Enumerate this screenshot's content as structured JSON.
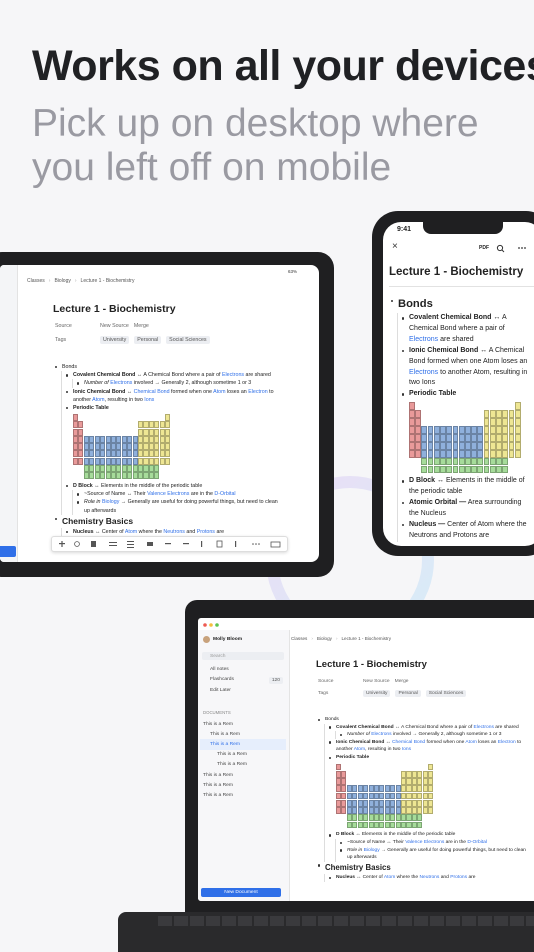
{
  "header": {
    "title": "Works on all your devices",
    "subtitle": "Pick up on desktop where you left off on mobile"
  },
  "tablet": {
    "status": "63%"
  },
  "phone": {
    "time": "9:41",
    "toolbar_label": "PDF",
    "outline": [
      {
        "runs": [
          {
            "style": "heading",
            "text": "Bonds"
          }
        ],
        "children": [
          {
            "runs": [
              {
                "style": "bold",
                "text": "Covalent Chemical Bond"
              },
              " ↔ A Chemical Bond where a pair of ",
              {
                "style": "link",
                "text": "Electrons"
              },
              " are shared"
            ]
          },
          {
            "runs": [
              {
                "style": "bold",
                "text": "Ionic Chemical Bond"
              },
              " ↔ A Chemical Bond formed when one Atom loses an ",
              {
                "style": "link",
                "text": "Electrons"
              },
              " to another Atom, resulting in two Ions"
            ]
          },
          {
            "runs": [
              {
                "style": "bold",
                "text": "Periodic Table"
              }
            ],
            "figure": "periodic-table"
          },
          {
            "runs": [
              {
                "style": "bold",
                "text": "D Block"
              },
              " ↔ Elements in the middle of the periodic table"
            ]
          },
          {
            "runs": [
              {
                "style": "bold",
                "text": "Atomic Orbital —"
              },
              " Area surrounding the Nucleus"
            ]
          },
          {
            "runs": [
              {
                "style": "bold",
                "text": "Nucleus —"
              },
              " Center of Atom where the Neutrons and Protons are"
            ]
          }
        ]
      }
    ]
  },
  "document": {
    "breadcrumb": [
      "Classes",
      "Biology",
      "Lecture 1 - Biochemistry"
    ],
    "title": "Lecture 1 - Biochemistry",
    "properties": [
      {
        "label": "Source",
        "values": [
          "New Source",
          "Merge"
        ]
      },
      {
        "label": "Tags",
        "values": [
          "University",
          "Personal",
          "Social Sciences"
        ]
      }
    ],
    "outline": [
      {
        "runs": [
          "Bonds"
        ],
        "children": [
          {
            "runs": [
              {
                "style": "bold",
                "text": "Covalent Chemical Bond"
              },
              " ↔ A Chemical Bond where a pair of ",
              {
                "style": "link",
                "text": "Electrons"
              },
              " are shared"
            ],
            "children": [
              {
                "runs": [
                  {
                    "style": "italic",
                    "text": "Number of "
                  },
                  {
                    "style": "link",
                    "text": "Electrons"
                  },
                  " involved → Generally 2, although sometime 1 or 3"
                ]
              }
            ]
          },
          {
            "runs": [
              {
                "style": "bold",
                "text": "Ionic Chemical Bond"
              },
              " ↔ ",
              {
                "style": "link",
                "text": "Chemical Bond"
              },
              " formed when one ",
              {
                "style": "link",
                "text": "Atom"
              },
              " loses an ",
              {
                "style": "link",
                "text": "Electron"
              },
              " to another ",
              {
                "style": "link",
                "text": "Atom"
              },
              ", resulting in two ",
              {
                "style": "link",
                "text": "Ions"
              }
            ]
          },
          {
            "runs": [
              {
                "style": "bold",
                "text": "Periodic Table"
              }
            ],
            "figure": "periodic-table"
          },
          {
            "runs": [
              {
                "style": "bold",
                "text": "D Block"
              },
              " ↔ Elements in the middle of the periodic table"
            ],
            "children": [
              {
                "runs": [
                  "~Source of Name ↔ Their ",
                  {
                    "style": "link",
                    "text": "Valence Electrons"
                  },
                  " are in the ",
                  {
                    "style": "link",
                    "text": "D-Orbital"
                  }
                ]
              },
              {
                "runs": [
                  {
                    "style": "italic",
                    "text": "Role in "
                  },
                  {
                    "style": "link",
                    "text": "Biology"
                  },
                  " → Generally are useful for doing powerful things, but need to clean up afterwards"
                ]
              }
            ]
          }
        ]
      },
      {
        "runs": [
          {
            "style": "heading",
            "text": "Chemistry Basics"
          }
        ],
        "children": [
          {
            "runs": [
              {
                "style": "bold",
                "text": "Nucleus"
              },
              " ↔ Center of ",
              {
                "style": "link",
                "text": "Atom"
              },
              " where the ",
              {
                "style": "link",
                "text": "Neutrons"
              },
              " and ",
              {
                "style": "link",
                "text": "Protons"
              },
              " are"
            ]
          }
        ]
      }
    ]
  },
  "laptop": {
    "sidebar": {
      "user": "Molly Bloom",
      "search": "Search",
      "nav": [
        {
          "name": "All notes"
        },
        {
          "name": "Flashcards",
          "badge": "120"
        },
        {
          "name": "Edit Later"
        }
      ],
      "section": "DOCUMENTS",
      "documents": [
        {
          "name": "This is a Rem",
          "children": [
            {
              "name": "This is a Rem"
            },
            {
              "name": "This is a Rem",
              "selected": true,
              "children": [
                {
                  "name": "This is a Rem"
                },
                {
                  "name": "This is a Rem"
                }
              ]
            }
          ]
        },
        {
          "name": "This is a Rem"
        },
        {
          "name": "This is a Rem"
        },
        {
          "name": "This is a Rem"
        }
      ],
      "button": "New Document"
    }
  }
}
